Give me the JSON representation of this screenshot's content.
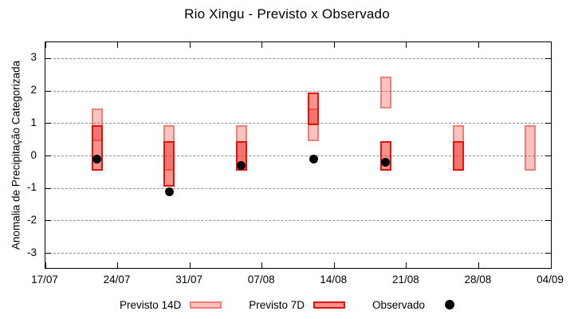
{
  "chart_data": {
    "type": "box",
    "title": "Rio Xingu - Previsto x Observado",
    "ylabel": "Anomalia de Precipitação Categorizada",
    "ylim": [
      -3.45,
      3.5
    ],
    "yticks": [
      3,
      2,
      1,
      0,
      -1,
      -2,
      -3
    ],
    "x_day_range": [
      0,
      49
    ],
    "xticks": [
      {
        "label": "17/07",
        "day": 0
      },
      {
        "label": "24/07",
        "day": 7
      },
      {
        "label": "31/07",
        "day": 14
      },
      {
        "label": "07/08",
        "day": 21
      },
      {
        "label": "14/08",
        "day": 28
      },
      {
        "label": "21/08",
        "day": 35
      },
      {
        "label": "28/08",
        "day": 42
      },
      {
        "label": "04/09",
        "day": 49
      }
    ],
    "grid": true,
    "legend_position": "bottom",
    "forecasts": [
      {
        "date": "22/07",
        "day": 5,
        "previsto_14d": [
          0.45,
          1.45
        ],
        "previsto_7d": [
          -0.45,
          0.95
        ],
        "observado": -0.1
      },
      {
        "date": "29/07",
        "day": 12,
        "previsto_14d": [
          -0.45,
          0.95
        ],
        "previsto_7d": [
          -0.95,
          0.45
        ],
        "observado": -1.1
      },
      {
        "date": "05/08",
        "day": 19,
        "previsto_14d": [
          -0.45,
          0.95
        ],
        "previsto_7d": [
          -0.45,
          0.45
        ],
        "observado": -0.3
      },
      {
        "date": "12/08",
        "day": 26,
        "previsto_14d": [
          0.45,
          1.45
        ],
        "previsto_7d": [
          0.95,
          1.95
        ],
        "observado": -0.1
      },
      {
        "date": "19/08",
        "day": 33,
        "previsto_14d": [
          1.45,
          2.45
        ],
        "previsto_7d": [
          -0.45,
          0.45
        ],
        "observado": -0.2
      },
      {
        "date": "26/08",
        "day": 40,
        "previsto_14d": [
          -0.45,
          0.95
        ],
        "previsto_7d": [
          -0.45,
          0.45
        ],
        "observado": null
      },
      {
        "date": "02/09",
        "day": 47,
        "previsto_14d": [
          -0.45,
          0.95
        ],
        "previsto_7d": null,
        "observado": null
      }
    ],
    "legend": [
      {
        "label": "Previsto 14D"
      },
      {
        "label": "Previsto 7D"
      },
      {
        "label": "Observado"
      }
    ],
    "colors": {
      "fill_14d": "rgba(235,40,30,0.28)",
      "border_14d": "rgba(235,40,30,0.45)",
      "fill_7d": "rgba(235,40,30,0.5)",
      "border_7d": "#e3120b",
      "observado": "#000000",
      "grid": "#909090",
      "axis": "#000000"
    }
  }
}
